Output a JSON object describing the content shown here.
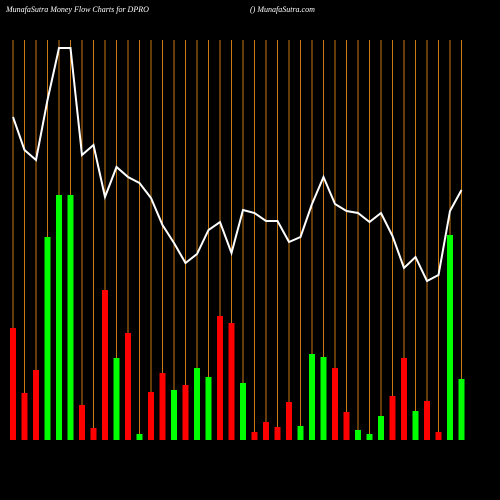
{
  "chart_data": {
    "type": "bar",
    "title": "MunafaSutra  Money Flow  Charts for DPRO",
    "subtitle": "() MunafaSutra.com",
    "grid": true,
    "grid_color": "#c87814",
    "categories": [
      null,
      null,
      null,
      null,
      null,
      null,
      null,
      null,
      null,
      null,
      null,
      null,
      null,
      null,
      null,
      null,
      null,
      null,
      null,
      null,
      null,
      null,
      null,
      null,
      null,
      null,
      null,
      null,
      null,
      null,
      null,
      null,
      null,
      null,
      null,
      null,
      null,
      null,
      null,
      null
    ],
    "series": [
      {
        "type": "bar",
        "colors": [
          "#ff0000",
          "#ff0000",
          "#ff0000",
          "#00ff00",
          "#00ff00",
          "#00ff00",
          "#ff0000",
          "#ff0000",
          "#ff0000",
          "#00ff00",
          "#ff0000",
          "#00ff00",
          "#ff0000",
          "#ff0000",
          "#00ff00",
          "#ff0000",
          "#00ff00",
          "#00ff00",
          "#ff0000",
          "#ff0000",
          "#00ff00",
          "#ff0000",
          "#ff0000",
          "#ff0000",
          "#ff0000",
          "#00ff00",
          "#00ff00",
          "#00ff00",
          "#ff0000",
          "#ff0000",
          "#00ff00",
          "#00ff00",
          "#00ff00",
          "#ff0000",
          "#ff0000",
          "#00ff00",
          "#ff0000",
          "#ff0000",
          "#00ff00",
          "#00ff00"
        ],
        "values": [
          112,
          47,
          70,
          203,
          245,
          245,
          35,
          12,
          150,
          82,
          107,
          6,
          48,
          67,
          50,
          55,
          72,
          63,
          124,
          117,
          57,
          8,
          18,
          13,
          38,
          14,
          86,
          83,
          72,
          28,
          10,
          6,
          24,
          44,
          82,
          29,
          39,
          8,
          205,
          61
        ]
      },
      {
        "type": "line",
        "color": "#ffffff",
        "values": [
          323,
          290,
          280,
          340,
          392,
          392,
          285,
          295,
          243,
          273,
          263,
          257,
          242,
          215,
          197,
          177,
          186,
          210,
          218,
          187,
          230,
          227,
          219,
          219,
          198,
          203,
          236,
          263,
          236,
          229,
          227,
          218,
          227,
          204,
          172,
          183,
          159,
          165,
          229,
          250
        ]
      }
    ]
  }
}
